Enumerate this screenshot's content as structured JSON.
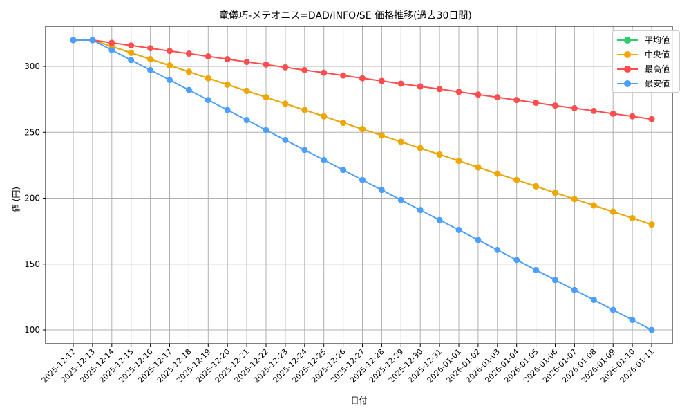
{
  "chart_data": {
    "type": "line",
    "title": "竜儀巧-メテオニス=DAD/INFO/SE 価格推移(過去30日間)",
    "xlabel": "日付",
    "ylabel": "値 (円)",
    "ylim": [
      90,
      330
    ],
    "yticks": [
      100,
      150,
      200,
      250,
      300
    ],
    "grid": true,
    "legend_position": "upper right",
    "x": [
      "2025-12-12",
      "2025-12-13",
      "2025-12-14",
      "2025-12-15",
      "2025-12-16",
      "2025-12-17",
      "2025-12-18",
      "2025-12-19",
      "2025-12-20",
      "2025-12-21",
      "2025-12-22",
      "2025-12-23",
      "2025-12-24",
      "2025-12-25",
      "2025-12-26",
      "2025-12-27",
      "2025-12-28",
      "2025-12-29",
      "2025-12-30",
      "2025-12-31",
      "2026-01-01",
      "2026-01-02",
      "2026-01-03",
      "2026-01-04",
      "2026-01-05",
      "2026-01-06",
      "2026-01-07",
      "2026-01-08",
      "2026-01-09",
      "2026-01-10",
      "2026-01-11"
    ],
    "series": [
      {
        "name": "平均値",
        "color": "#2ecc71",
        "values": [
          320,
          320,
          315.2,
          310.3,
          305.5,
          300.7,
          295.9,
          291.0,
          286.2,
          281.4,
          276.6,
          271.7,
          266.9,
          262.1,
          257.2,
          252.4,
          247.6,
          242.8,
          237.9,
          233.1,
          228.3,
          223.4,
          218.6,
          213.8,
          209.0,
          204.1,
          199.3,
          194.5,
          189.7,
          184.8,
          180
        ]
      },
      {
        "name": "中央値",
        "color": "#f5a500",
        "values": [
          320,
          320,
          315.2,
          310.3,
          305.5,
          300.7,
          295.9,
          291.0,
          286.2,
          281.4,
          276.6,
          271.7,
          266.9,
          262.1,
          257.2,
          252.4,
          247.6,
          242.8,
          237.9,
          233.1,
          228.3,
          223.4,
          218.6,
          213.8,
          209.0,
          204.1,
          199.3,
          194.5,
          189.7,
          184.8,
          180
        ]
      },
      {
        "name": "最高値",
        "color": "#ff4d4d",
        "values": [
          320,
          320,
          317.9,
          315.9,
          313.8,
          311.7,
          309.7,
          307.6,
          305.5,
          303.4,
          301.4,
          299.3,
          297.2,
          295.2,
          293.1,
          291.0,
          289.0,
          286.9,
          284.8,
          282.8,
          280.7,
          278.6,
          276.6,
          274.5,
          272.4,
          270.3,
          268.3,
          266.2,
          264.1,
          262.1,
          260
        ]
      },
      {
        "name": "最安値",
        "color": "#4d9fff",
        "values": [
          320,
          320,
          312.4,
          304.8,
          297.2,
          289.7,
          282.1,
          274.5,
          266.9,
          259.3,
          251.7,
          244.1,
          236.6,
          229.0,
          221.4,
          213.8,
          206.2,
          198.6,
          191.0,
          183.4,
          175.9,
          168.3,
          160.7,
          153.1,
          145.5,
          137.9,
          130.3,
          122.8,
          115.2,
          107.6,
          100
        ]
      }
    ]
  }
}
